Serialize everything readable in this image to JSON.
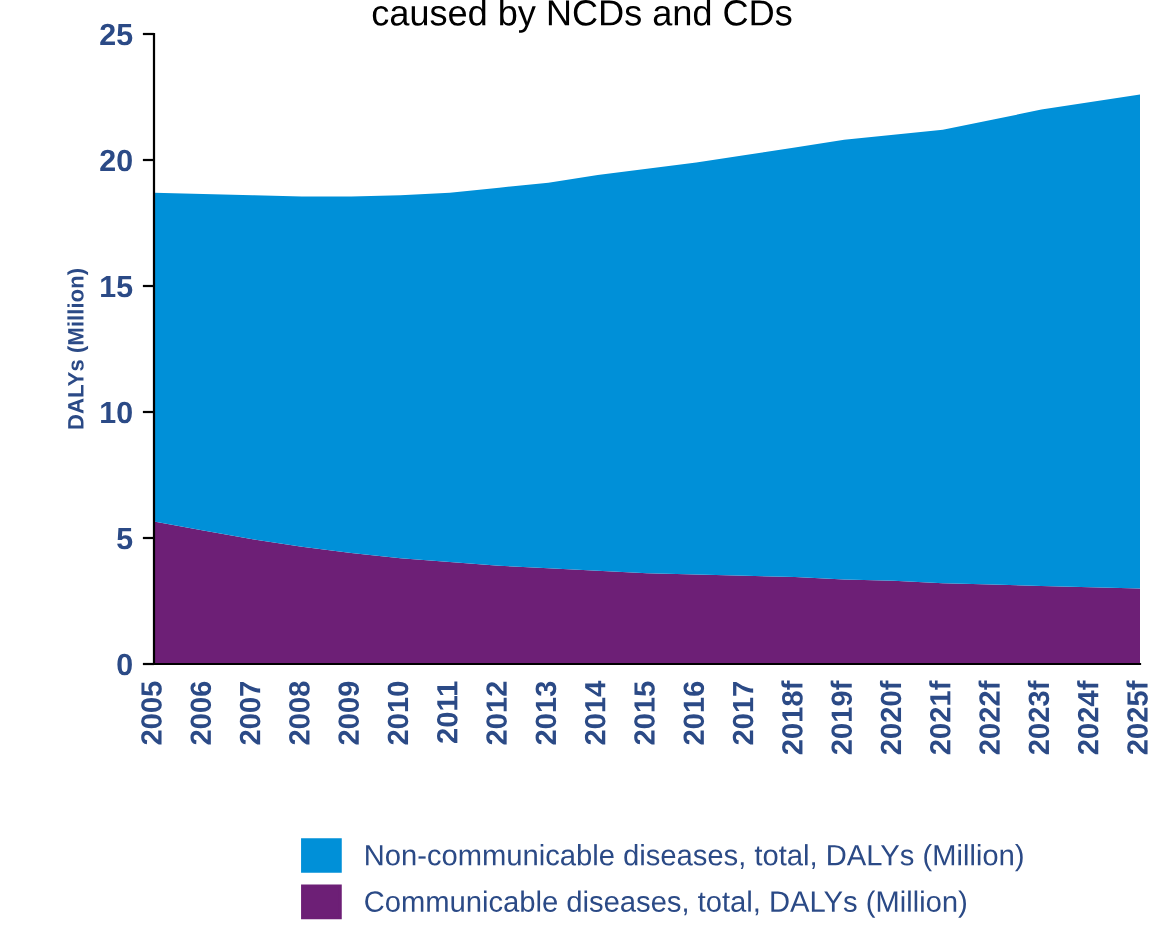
{
  "chart_data": {
    "type": "area",
    "stacked": true,
    "title": "caused by NCDs and CDs",
    "ylabel": "DALYs (Million)",
    "categories": [
      "2005",
      "2006",
      "2007",
      "2008",
      "2009",
      "2010",
      "2011",
      "2012",
      "2013",
      "2014",
      "2015",
      "2016",
      "2017",
      "2018f",
      "2019f",
      "2020f",
      "2021f",
      "2022f",
      "2023f",
      "2024f",
      "2025f"
    ],
    "series": [
      {
        "name": "Communicable diseases, total, DALYs (Million)",
        "color": "#6d1f76",
        "values": [
          5.65,
          5.3,
          4.95,
          4.65,
          4.4,
          4.2,
          4.05,
          3.9,
          3.8,
          3.7,
          3.6,
          3.55,
          3.5,
          3.45,
          3.35,
          3.3,
          3.2,
          3.15,
          3.1,
          3.05,
          3.0
        ]
      },
      {
        "name": "Non-communicable diseases, total, DALYs (Million)",
        "color": "#0090d8",
        "values": [
          13.05,
          13.35,
          13.65,
          13.9,
          14.15,
          14.4,
          14.65,
          15.0,
          15.3,
          15.7,
          16.05,
          16.35,
          16.7,
          17.05,
          17.45,
          17.7,
          18.0,
          18.45,
          18.9,
          19.25,
          19.6
        ]
      }
    ],
    "ylim": [
      0,
      25
    ],
    "yticks": [
      0,
      5,
      10,
      15,
      20,
      25
    ],
    "grid": false,
    "legend": "bottom"
  }
}
